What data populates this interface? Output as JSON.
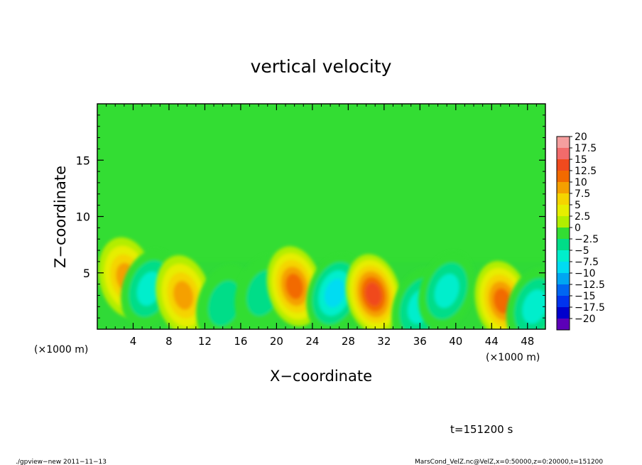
{
  "chart_data": {
    "type": "heatmap",
    "title": "vertical velocity",
    "xlabel": "X−coordinate",
    "ylabel": "Z−coordinate",
    "x_unit_left": "(×1000 m)",
    "x_unit_right": "(×1000 m)",
    "xlim": [
      0,
      50
    ],
    "ylim": [
      0,
      20
    ],
    "xticks": [
      4,
      8,
      12,
      16,
      20,
      24,
      28,
      32,
      36,
      40,
      44,
      48
    ],
    "xtick_labels": [
      "4",
      "8",
      "12",
      "16",
      "20",
      "24",
      "28",
      "32",
      "36",
      "40",
      "44",
      "48"
    ],
    "yticks": [
      5,
      10,
      15
    ],
    "ytick_labels": [
      "5",
      "10",
      "15"
    ],
    "grid": false,
    "colorbar": {
      "levels": [
        20,
        17.5,
        15,
        12.5,
        10,
        7.5,
        5,
        2.5,
        0,
        -2.5,
        -5,
        -7.5,
        -10,
        -12.5,
        -15,
        -17.5,
        -20
      ],
      "labels": [
        "20",
        "17.5",
        "15",
        "12.5",
        "10",
        "7.5",
        "5",
        "2.5",
        "0",
        "−2.5",
        "−5",
        "−7.5",
        "−10",
        "−12.5",
        "−15",
        "−17.5",
        "−20"
      ],
      "colors": [
        "#f59e9e",
        "#f26b6b",
        "#f04a1e",
        "#f26a00",
        "#f5a000",
        "#f5d400",
        "#e6ee00",
        "#b2ee00",
        "#33dd33",
        "#00dd88",
        "#00eecc",
        "#00dcf2",
        "#00a6f2",
        "#0066f2",
        "#0033ee",
        "#0000cc",
        "#5c00b8"
      ]
    },
    "features": [
      {
        "type": "max",
        "x": 3.2,
        "z": 4.6,
        "value": 9
      },
      {
        "type": "min",
        "x": 5.8,
        "z": 3.6,
        "value": -7.5
      },
      {
        "type": "max",
        "x": 9.6,
        "z": 3.0,
        "value": 10
      },
      {
        "type": "min",
        "x": 14.2,
        "z": 2.3,
        "value": -3.5
      },
      {
        "type": "min",
        "x": 18.5,
        "z": 3.2,
        "value": -4
      },
      {
        "type": "max",
        "x": 22.0,
        "z": 3.8,
        "value": 12.5
      },
      {
        "type": "min",
        "x": 26.5,
        "z": 3.2,
        "value": -8
      },
      {
        "type": "max",
        "x": 30.8,
        "z": 3.1,
        "value": 14
      },
      {
        "type": "min",
        "x": 36.0,
        "z": 2.0,
        "value": -7.5
      },
      {
        "type": "min",
        "x": 39.0,
        "z": 3.4,
        "value": -6.5
      },
      {
        "type": "max",
        "x": 45.2,
        "z": 2.5,
        "value": 11
      },
      {
        "type": "min",
        "x": 48.8,
        "z": 2.0,
        "value": -6
      }
    ]
  },
  "annotation_time": "t=151200 s",
  "footer_left": "./gpview−new  2011−11−13",
  "footer_right": "MarsCond_VelZ.nc@VelZ,x=0:50000,z=0:20000,t=151200"
}
